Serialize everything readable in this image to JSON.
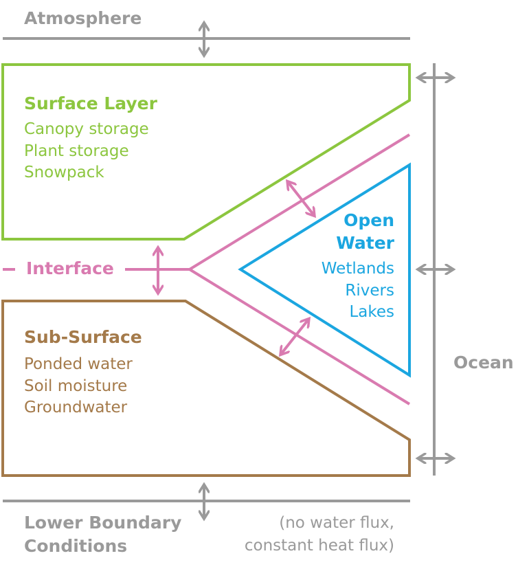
{
  "colors": {
    "surface": "#8cc63f",
    "interface": "#d97bb0",
    "open_water": "#1ba6e0",
    "sub_surface": "#a47a4a",
    "boundary": "#9a9a9a"
  },
  "atmosphere": {
    "label": "Atmosphere"
  },
  "surface_layer": {
    "title": "Surface Layer",
    "items": [
      "Canopy storage",
      "Plant storage",
      "Snowpack"
    ]
  },
  "interface": {
    "label": "Interface"
  },
  "open_water": {
    "title_line1": "Open",
    "title_line2": "Water",
    "items": [
      "Wetlands",
      "Rivers",
      "Lakes"
    ]
  },
  "sub_surface": {
    "title": "Sub-Surface",
    "items": [
      "Ponded water",
      "Soil moisture",
      "Groundwater"
    ]
  },
  "ocean": {
    "label": "Ocean"
  },
  "lower_boundary": {
    "line1": "Lower Boundary",
    "line2": "Conditions",
    "note_line1": "(no water flux,",
    "note_line2": "constant heat flux)"
  },
  "icons": {
    "exchange_arrows": "double-headed-arrow-icon"
  }
}
